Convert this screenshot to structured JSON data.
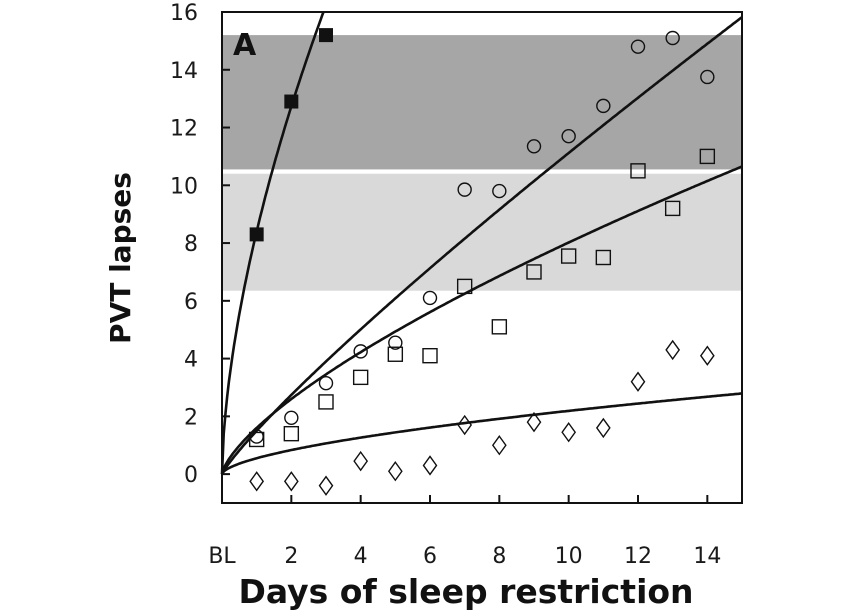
{
  "chart_data": {
    "type": "scatter",
    "title": "",
    "panel_label": "A",
    "xlabel": "Days of sleep restriction",
    "ylabel": "PVT lapses",
    "xlim": [
      0,
      15
    ],
    "ylim": [
      -1,
      16
    ],
    "x_ticks": [
      {
        "value": 0,
        "label": "BL"
      },
      {
        "value": 2,
        "label": "2"
      },
      {
        "value": 4,
        "label": "4"
      },
      {
        "value": 6,
        "label": "6"
      },
      {
        "value": 8,
        "label": "8"
      },
      {
        "value": 10,
        "label": "10"
      },
      {
        "value": 12,
        "label": "12"
      },
      {
        "value": 14,
        "label": "14"
      }
    ],
    "y_ticks": [
      0,
      2,
      4,
      6,
      8,
      10,
      12,
      14,
      16
    ],
    "bands": [
      {
        "y_from": 10.55,
        "y_to": 15.2,
        "color": "#a6a6a6"
      },
      {
        "y_from": 6.35,
        "y_to": 10.4,
        "color": "#d9d9d9"
      }
    ],
    "series": [
      {
        "marker": "filled-square",
        "x": [
          1,
          2,
          3
        ],
        "y": [
          8.3,
          12.9,
          15.2
        ],
        "fit": {
          "a": 8.4,
          "b": 0.6
        }
      },
      {
        "marker": "open-circle",
        "x": [
          1,
          2,
          3,
          4,
          5,
          6,
          7,
          8,
          9,
          10,
          11,
          12,
          13,
          14
        ],
        "y": [
          1.3,
          1.95,
          3.15,
          4.25,
          4.55,
          6.1,
          9.85,
          9.8,
          11.35,
          11.7,
          12.75,
          14.8,
          15.1,
          13.75
        ],
        "fit": {
          "a": 1.5,
          "b": 0.87
        }
      },
      {
        "marker": "open-square",
        "x": [
          1,
          2,
          3,
          4,
          5,
          6,
          7,
          8,
          9,
          10,
          11,
          12,
          13,
          14
        ],
        "y": [
          1.2,
          1.4,
          2.5,
          3.35,
          4.15,
          4.1,
          6.5,
          5.1,
          7.0,
          7.55,
          7.5,
          10.5,
          9.2,
          11.0
        ],
        "fit": {
          "a": 1.6,
          "b": 0.7
        }
      },
      {
        "marker": "open-diamond",
        "x": [
          1,
          2,
          3,
          4,
          5,
          6,
          7,
          8,
          9,
          10,
          11,
          12,
          13,
          14
        ],
        "y": [
          -0.25,
          -0.25,
          -0.4,
          0.45,
          0.1,
          0.3,
          1.7,
          1.0,
          1.8,
          1.45,
          1.6,
          3.2,
          4.3,
          4.1
        ],
        "fit": {
          "a": 0.55,
          "b": 0.6
        }
      }
    ]
  }
}
